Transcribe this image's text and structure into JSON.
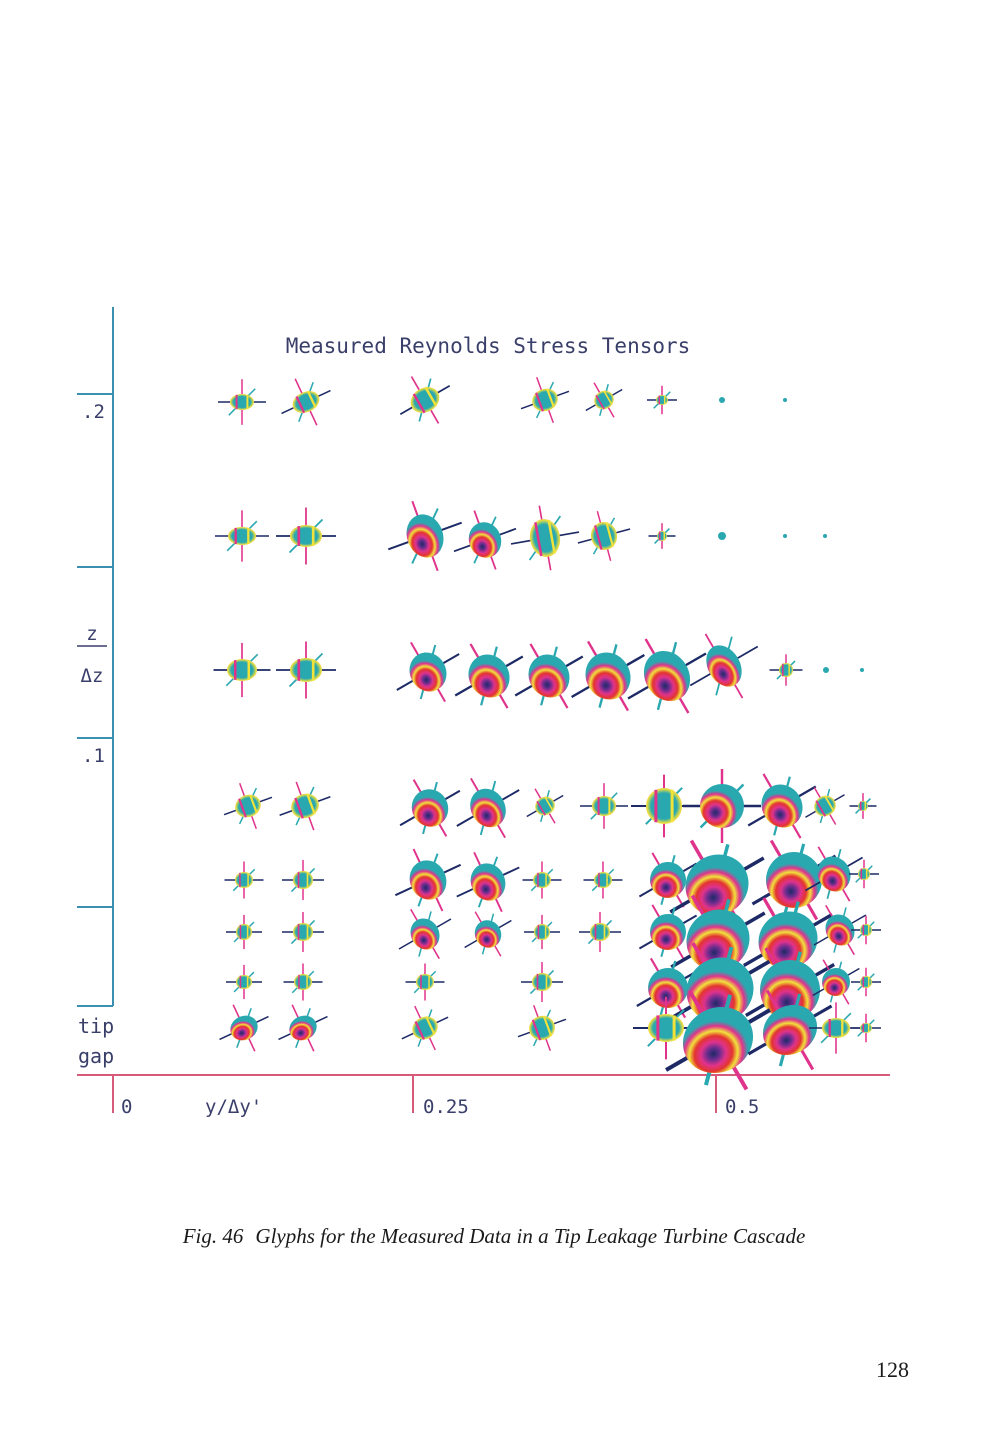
{
  "figure": {
    "title": "Measured Reynolds Stress Tensors",
    "y_axis": {
      "label_top": "z",
      "label_bottom": "Δz",
      "ticks": [
        ".2",
        ".1"
      ],
      "bottom_label": [
        "tip",
        "gap"
      ]
    },
    "x_axis": {
      "label": "y/Δy'",
      "ticks": [
        "0",
        "0.25",
        "0.5"
      ]
    },
    "colors": {
      "axis_y": "#3b8fb0",
      "axis_x": "#d65a7a",
      "glyph_teal": "#2aa8b0",
      "glyph_magenta": "#e0338c",
      "glyph_yellow": "#f1e23a",
      "glyph_red": "#e3342f",
      "glyph_purple": "#6a2c8e",
      "glyph_navy": "#1d2a66"
    }
  },
  "caption": {
    "number": "Fig. 46",
    "text": "Glyphs for the Measured Data in a Tip Leakage Turbine Cascade"
  },
  "page_number": "128"
}
